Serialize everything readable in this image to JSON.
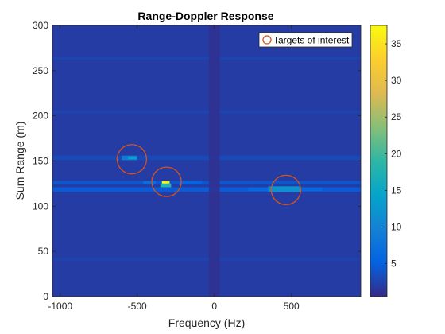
{
  "chart_data": {
    "type": "heatmap",
    "title": "Range-Doppler Response",
    "xlabel": "Frequency (Hz)",
    "ylabel": "Sum Range (m)",
    "xlim": [
      -1050,
      950
    ],
    "ylim": [
      0,
      300
    ],
    "xticks": [
      -1000,
      -500,
      0,
      500
    ],
    "xtick_labels": [
      "-1000",
      "-500",
      "0",
      "500"
    ],
    "yticks": [
      0,
      50,
      100,
      150,
      200,
      250,
      300
    ],
    "ytick_labels": [
      "0",
      "50",
      "100",
      "150",
      "200",
      "250",
      "300"
    ],
    "colorbar": {
      "range": [
        0.5,
        37.5
      ],
      "ticks": [
        5,
        10,
        15,
        20,
        25,
        30,
        35
      ],
      "tick_labels": [
        "5",
        "10",
        "15",
        "20",
        "25",
        "30",
        "35"
      ],
      "colormap": "parula"
    },
    "background_level": 2,
    "range_bands": [
      {
        "y0": 116,
        "y1": 121,
        "level": 4.5
      },
      {
        "y0": 124,
        "y1": 128,
        "level": 4
      },
      {
        "y0": 151,
        "y1": 156,
        "level": 3
      },
      {
        "y0": 203,
        "y1": 206,
        "level": 2.6
      },
      {
        "y0": 262,
        "y1": 265,
        "level": 2.6
      },
      {
        "y0": 40,
        "y1": 43,
        "level": 2.5
      }
    ],
    "doppler_band": {
      "x0": -35,
      "x1": 35,
      "level": 1
    },
    "hotspots": [
      {
        "x0": -340,
        "x1": -290,
        "y0": 125,
        "y1": 128,
        "level": 36
      },
      {
        "x0": -350,
        "x1": -280,
        "y0": 121,
        "y1": 125,
        "level": 18
      },
      {
        "x0": 390,
        "x1": 510,
        "y0": 117,
        "y1": 121,
        "level": 30
      },
      {
        "x0": 350,
        "x1": 560,
        "y0": 116,
        "y1": 122,
        "level": 12
      },
      {
        "x0": -600,
        "x1": -500,
        "y0": 151,
        "y1": 156,
        "level": 9
      },
      {
        "x0": -560,
        "x1": -505,
        "y0": 152,
        "y1": 155,
        "level": 14
      },
      {
        "x0": -460,
        "x1": -380,
        "y0": 124,
        "y1": 128,
        "level": 7
      },
      {
        "x0": -220,
        "x1": -80,
        "y0": 124,
        "y1": 128,
        "level": 5.5
      },
      {
        "x0": 220,
        "x1": 350,
        "y0": 117,
        "y1": 121,
        "level": 6
      },
      {
        "x0": 560,
        "x1": 700,
        "y0": 117,
        "y1": 121,
        "level": 6
      }
    ],
    "targets": [
      {
        "x": -535,
        "y": 152
      },
      {
        "x": -310,
        "y": 127
      },
      {
        "x": 465,
        "y": 118
      }
    ],
    "target_color": "#d95319",
    "legend": {
      "entries": [
        "Targets of interest"
      ],
      "placement": "top-right"
    },
    "grid": false
  }
}
